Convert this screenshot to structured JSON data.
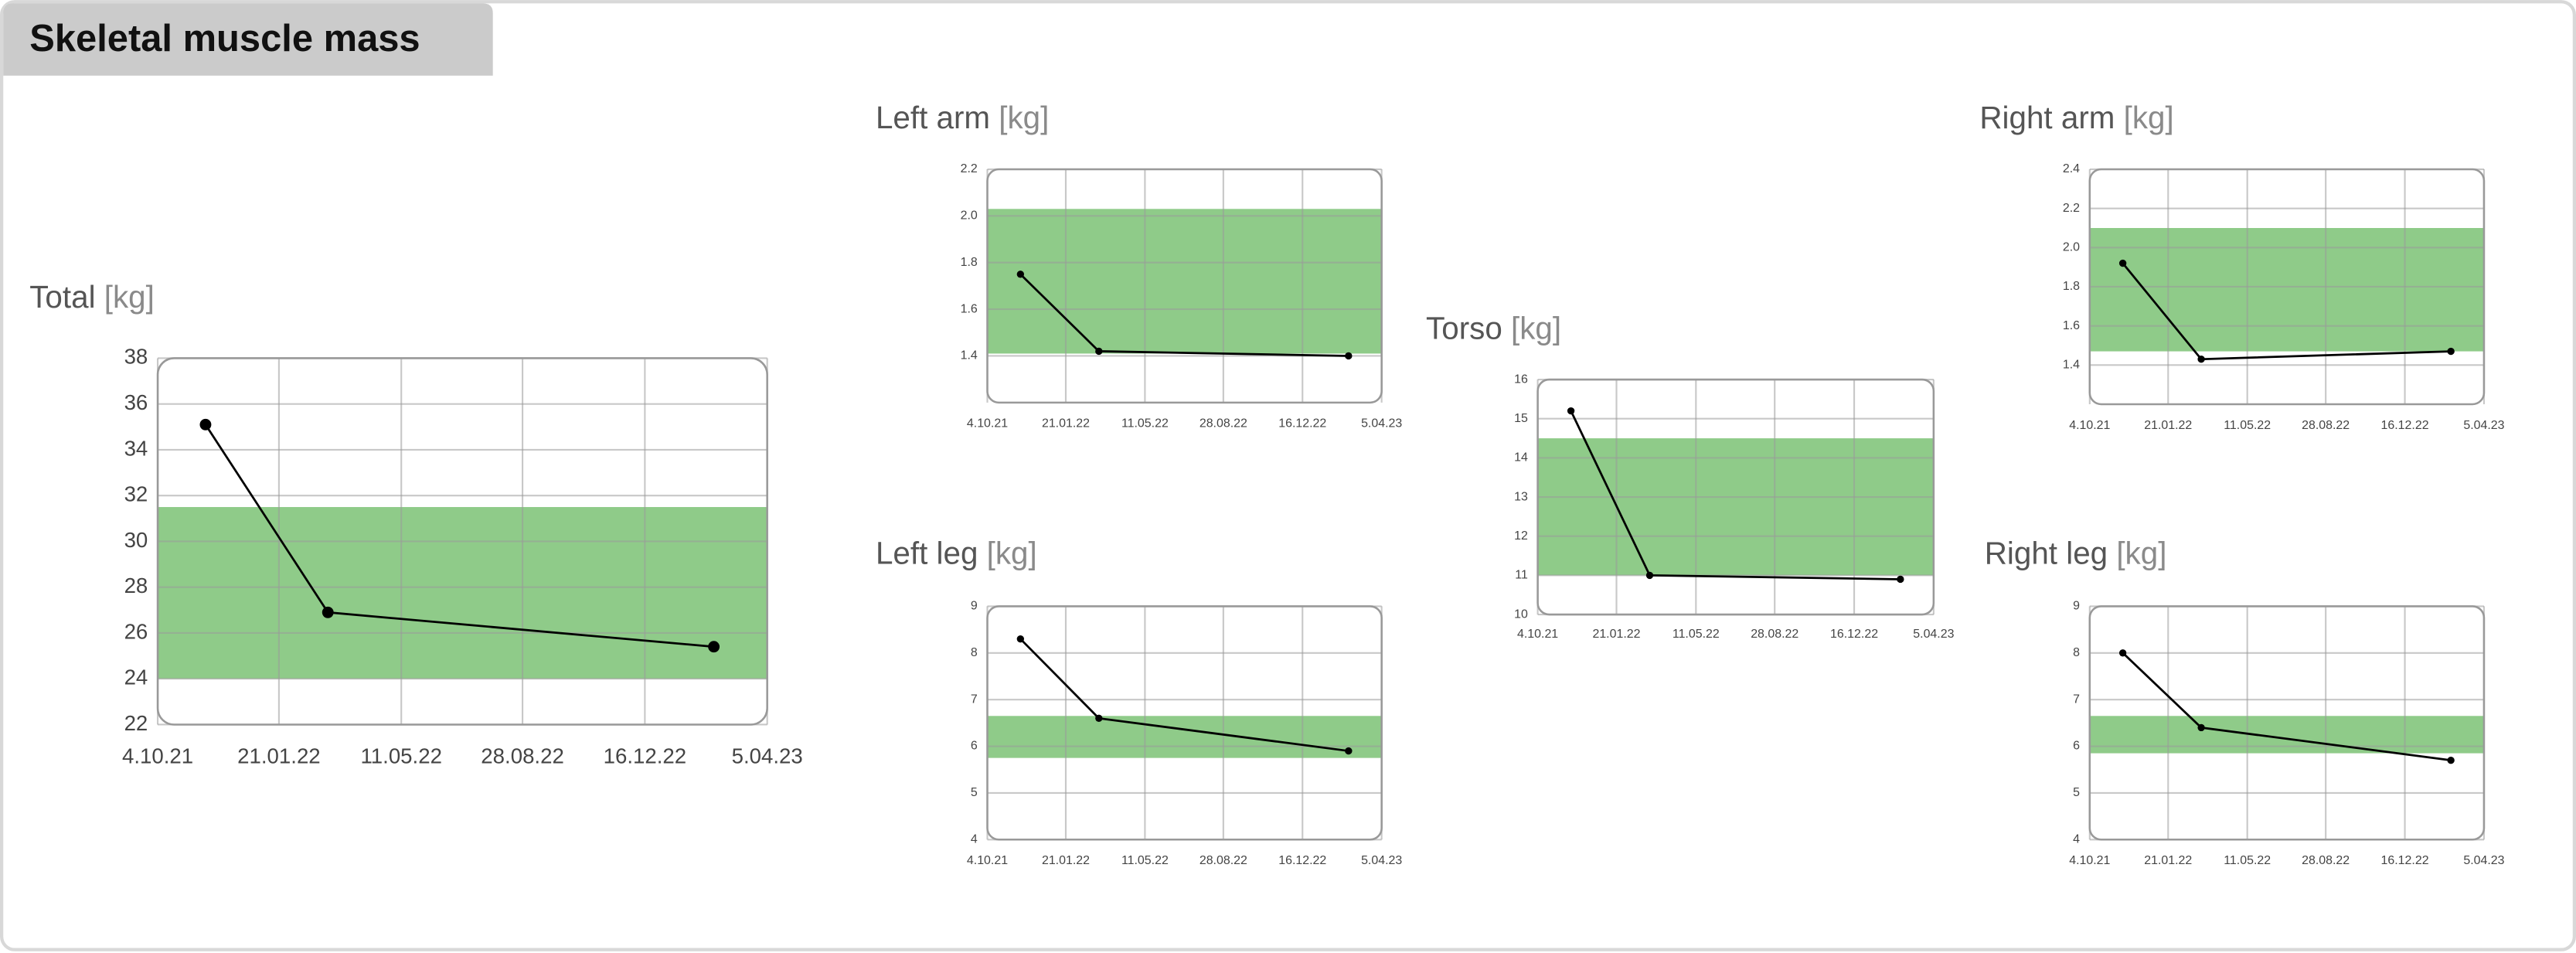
{
  "header": {
    "title": "Skeletal muscle mass"
  },
  "chart_data": [
    {
      "type": "line",
      "title": "Total",
      "unit": "[kg]",
      "x": [
        "2021-11-16",
        "2022-03-06",
        "2023-02-16"
      ],
      "values": [
        35.1,
        26.9,
        25.4
      ],
      "xlim": [
        "2021-10-04",
        "2023-04-05"
      ],
      "xticks": [
        {
          "value": "2021-10-04",
          "label": "4.10.21"
        },
        {
          "value": "2022-01-21",
          "label": "21.01.22"
        },
        {
          "value": "2022-05-11",
          "label": "11.05.22"
        },
        {
          "value": "2022-08-28",
          "label": "28.08.22"
        },
        {
          "value": "2022-12-16",
          "label": "16.12.22"
        },
        {
          "value": "2023-04-05",
          "label": "5.04.23"
        }
      ],
      "ylim": [
        22,
        38
      ],
      "yticks": [
        22,
        24,
        26,
        28,
        30,
        32,
        34,
        36,
        38
      ],
      "normal_range": [
        24,
        31.5
      ],
      "color": "#000000",
      "band_color": "#8fcb89",
      "grid": true
    },
    {
      "type": "line",
      "title": "Left arm",
      "unit": "[kg]",
      "x": [
        "2021-11-19",
        "2022-03-08",
        "2023-02-18"
      ],
      "values": [
        1.75,
        1.42,
        1.4
      ],
      "xlim": [
        "2021-10-04",
        "2023-04-05"
      ],
      "xticks": [
        {
          "value": "2021-10-04",
          "label": "4.10.21"
        },
        {
          "value": "2022-01-21",
          "label": "21.01.22"
        },
        {
          "value": "2022-05-11",
          "label": "11.05.22"
        },
        {
          "value": "2022-08-28",
          "label": "28.08.22"
        },
        {
          "value": "2022-12-16",
          "label": "16.12.22"
        },
        {
          "value": "2023-04-05",
          "label": "5.04.23"
        }
      ],
      "ylim": [
        1.2,
        2.2
      ],
      "yticks": [
        1.4,
        1.6,
        1.8,
        {
          "value": 2,
          "label": "2.0"
        },
        2.2
      ],
      "normal_range": [
        1.41,
        2.03
      ],
      "color": "#000000",
      "band_color": "#8fcb89",
      "grid": true
    },
    {
      "type": "line",
      "title": "Left leg",
      "unit": "[kg]",
      "x": [
        "2021-11-19",
        "2022-03-08",
        "2023-02-18"
      ],
      "values": [
        8.3,
        6.6,
        5.9
      ],
      "xlim": [
        "2021-10-04",
        "2023-04-05"
      ],
      "xticks": [
        {
          "value": "2021-10-04",
          "label": "4.10.21"
        },
        {
          "value": "2022-01-21",
          "label": "21.01.22"
        },
        {
          "value": "2022-05-11",
          "label": "11.05.22"
        },
        {
          "value": "2022-08-28",
          "label": "28.08.22"
        },
        {
          "value": "2022-12-16",
          "label": "16.12.22"
        },
        {
          "value": "2023-04-05",
          "label": "5.04.23"
        }
      ],
      "ylim": [
        4,
        9
      ],
      "yticks": [
        4,
        5,
        6,
        7,
        8,
        9
      ],
      "normal_range": [
        5.75,
        6.65
      ],
      "color": "#000000",
      "band_color": "#8fcb89",
      "grid": true
    },
    {
      "type": "line",
      "title": "Torso",
      "unit": "[kg]",
      "x": [
        "2021-11-19",
        "2022-03-08",
        "2023-02-18"
      ],
      "values": [
        15.2,
        11,
        10.9
      ],
      "xlim": [
        "2021-10-04",
        "2023-04-05"
      ],
      "xticks": [
        {
          "value": "2021-10-04",
          "label": "4.10.21"
        },
        {
          "value": "2022-01-21",
          "label": "21.01.22"
        },
        {
          "value": "2022-05-11",
          "label": "11.05.22"
        },
        {
          "value": "2022-08-28",
          "label": "28.08.22"
        },
        {
          "value": "2022-12-16",
          "label": "16.12.22"
        },
        {
          "value": "2023-04-05",
          "label": "5.04.23"
        }
      ],
      "ylim": [
        10,
        16
      ],
      "yticks": [
        10,
        11,
        12,
        13,
        14,
        15,
        16
      ],
      "normal_range": [
        11,
        14.5
      ],
      "color": "#000000",
      "band_color": "#8fcb89",
      "grid": true
    },
    {
      "type": "line",
      "title": "Right arm",
      "unit": "[kg]",
      "x": [
        "2021-11-19",
        "2022-03-08",
        "2023-02-18"
      ],
      "values": [
        1.92,
        1.43,
        1.47
      ],
      "xlim": [
        "2021-10-04",
        "2023-04-05"
      ],
      "xticks": [
        {
          "value": "2021-10-04",
          "label": "4.10.21"
        },
        {
          "value": "2022-01-21",
          "label": "21.01.22"
        },
        {
          "value": "2022-05-11",
          "label": "11.05.22"
        },
        {
          "value": "2022-08-28",
          "label": "28.08.22"
        },
        {
          "value": "2022-12-16",
          "label": "16.12.22"
        },
        {
          "value": "2023-04-05",
          "label": "5.04.23"
        }
      ],
      "ylim": [
        1.2,
        2.4
      ],
      "yticks": [
        1.4,
        1.6,
        1.8,
        {
          "value": 2,
          "label": "2.0"
        },
        2.2,
        2.4
      ],
      "normal_range": [
        1.47,
        2.1
      ],
      "color": "#000000",
      "band_color": "#8fcb89",
      "grid": true
    },
    {
      "type": "line",
      "title": "Right leg",
      "unit": "[kg]",
      "x": [
        "2021-11-19",
        "2022-03-08",
        "2023-02-18"
      ],
      "values": [
        8,
        6.4,
        5.7
      ],
      "xlim": [
        "2021-10-04",
        "2023-04-05"
      ],
      "xticks": [
        {
          "value": "2021-10-04",
          "label": "4.10.21"
        },
        {
          "value": "2022-01-21",
          "label": "21.01.22"
        },
        {
          "value": "2022-05-11",
          "label": "11.05.22"
        },
        {
          "value": "2022-08-28",
          "label": "28.08.22"
        },
        {
          "value": "2022-12-16",
          "label": "16.12.22"
        },
        {
          "value": "2023-04-05",
          "label": "5.04.23"
        }
      ],
      "ylim": [
        4,
        9
      ],
      "yticks": [
        4,
        5,
        6,
        7,
        8,
        9
      ],
      "normal_range": [
        5.85,
        6.65
      ],
      "color": "#000000",
      "band_color": "#8fcb89",
      "grid": true
    }
  ]
}
